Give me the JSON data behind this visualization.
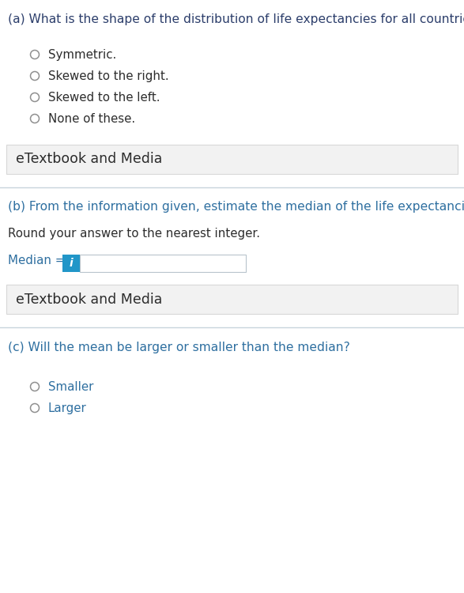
{
  "bg_color": "#ffffff",
  "part_a": {
    "question": "(a) What is the shape of the distribution of life expectancies for all countries?",
    "question_color": "#2c3e6b",
    "options": [
      "Symmetric.",
      "Skewed to the right.",
      "Skewed to the left.",
      "None of these."
    ],
    "option_color": "#2c2c2c",
    "etextbook_label": "eTextbook and Media",
    "etextbook_bg": "#f2f2f2",
    "etextbook_color": "#2c2c2c",
    "etextbook_border": "#d8d8d8"
  },
  "part_b": {
    "question": "(b) From the information given, estimate the median of the life expectancies.",
    "question_color": "#2e6fa0",
    "subtext": "Round your answer to the nearest integer.",
    "subtext_color": "#2c2c2c",
    "median_label": "Median = ",
    "median_label_color": "#2e6fa0",
    "icon_bg": "#2196c8",
    "icon_text": "i",
    "icon_text_color": "#ffffff",
    "input_box_color": "#ffffff",
    "input_box_border": "#b8c4cc",
    "etextbook_label": "eTextbook and Media",
    "etextbook_bg": "#f2f2f2",
    "etextbook_color": "#2c2c2c",
    "etextbook_border": "#d8d8d8"
  },
  "part_c": {
    "question": "(c) Will the mean be larger or smaller than the median?",
    "question_color": "#2e6fa0",
    "options": [
      "Smaller",
      "Larger"
    ],
    "option_color": "#2e6fa0"
  },
  "separator_color": "#c8d4dc",
  "radio_edge_color": "#909090",
  "font_size_question": 11.2,
  "font_size_option": 10.8,
  "font_size_etextbook": 12.5,
  "font_size_subtext": 10.8,
  "font_size_median_label": 10.8
}
